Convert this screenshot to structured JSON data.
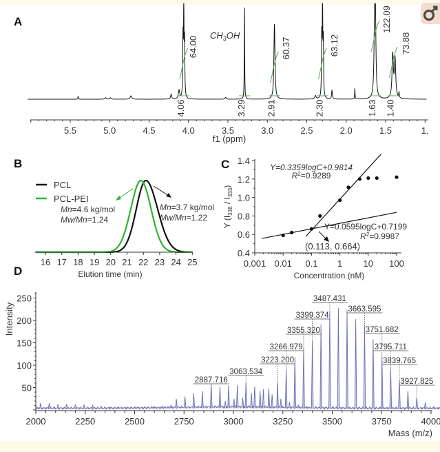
{
  "icon": {
    "name": "key-circle-icon",
    "bg": "#f3dccf",
    "fg": "#4a4a4a"
  },
  "colors": {
    "axis": "#333333",
    "pcl": "#111111",
    "pcl_pei": "#2db52d",
    "integral": "#5aa85a",
    "ms_line": "#6e6eb4",
    "band": "#fffbea"
  },
  "panels": {
    "a": "A",
    "b": "B",
    "c": "C",
    "d": "D"
  },
  "chart_data": [
    {
      "panel": "A",
      "type": "line",
      "xlabel": "f1 (ppm)",
      "xlim": [
        6.04,
        0.98
      ],
      "x_reversed": true,
      "xticks": [
        {
          "v": 5.5,
          "label": "5.5"
        },
        {
          "v": 5.0,
          "label": "5.0"
        },
        {
          "v": 4.5,
          "label": "4.5"
        },
        {
          "v": 4.0,
          "label": "4.0"
        },
        {
          "v": 3.5,
          "label": "3.5"
        },
        {
          "v": 3.0,
          "label": "3.0"
        },
        {
          "v": 2.5,
          "label": "2.5"
        },
        {
          "v": 2.0,
          "label": "2.0"
        },
        {
          "v": 1.5,
          "label": "1.5"
        },
        {
          "v": 1.0,
          "label": "1."
        }
      ],
      "solvent_label": {
        "pre": "CH",
        "sub": "3",
        "post": "OH"
      },
      "peaks": [
        {
          "ppm": 5.4,
          "rel_height": 0.03,
          "width": 0.004
        },
        {
          "ppm": 5.05,
          "rel_height": 0.015,
          "width": 0.01
        },
        {
          "ppm": 4.99,
          "rel_height": 0.015,
          "width": 0.01
        },
        {
          "ppm": 4.73,
          "rel_height": 0.035,
          "width": 0.012
        },
        {
          "ppm": 4.22,
          "rel_height": 0.05,
          "width": 0.008
        },
        {
          "ppm": 4.12,
          "rel_height": 0.09,
          "width": 0.01
        },
        {
          "ppm": 4.07,
          "rel_height": 0.6,
          "width": 0.004
        },
        {
          "ppm": 4.06,
          "rel_height": 0.92,
          "width": 0.004
        },
        {
          "ppm": 4.05,
          "rel_height": 0.55,
          "width": 0.004
        },
        {
          "ppm": 3.53,
          "rel_height": 0.02,
          "width": 0.008
        },
        {
          "ppm": 3.29,
          "rel_height": 0.95,
          "width": 0.003
        },
        {
          "ppm": 2.91,
          "rel_height": 0.78,
          "width": 0.008
        },
        {
          "ppm": 2.39,
          "rel_height": 0.035,
          "width": 0.01
        },
        {
          "ppm": 2.31,
          "rel_height": 0.6,
          "width": 0.004
        },
        {
          "ppm": 2.3,
          "rel_height": 0.96,
          "width": 0.004
        },
        {
          "ppm": 2.29,
          "rel_height": 0.55,
          "width": 0.004
        },
        {
          "ppm": 2.18,
          "rel_height": 0.09,
          "width": 0.006
        },
        {
          "ppm": 1.89,
          "rel_height": 0.11,
          "width": 0.003
        },
        {
          "ppm": 1.64,
          "rel_height": 0.7,
          "width": 0.008
        },
        {
          "ppm": 1.63,
          "rel_height": 0.85,
          "width": 0.008
        },
        {
          "ppm": 1.41,
          "rel_height": 0.45,
          "width": 0.01
        },
        {
          "ppm": 1.38,
          "rel_height": 0.4,
          "width": 0.01
        },
        {
          "ppm": 1.33,
          "rel_height": 0.06,
          "width": 0.004
        }
      ],
      "integrals": [
        {
          "ppm": "4.06",
          "value": "64.00"
        },
        {
          "ppm": "3.29",
          "value": ""
        },
        {
          "ppm": "2.91",
          "value": "60.37"
        },
        {
          "ppm": "2.30",
          "value": "63.12"
        },
        {
          "ppm": "1.63",
          "value": "122.09"
        },
        {
          "ppm": "1.40",
          "value": "73.88"
        }
      ]
    },
    {
      "panel": "B",
      "type": "line",
      "xlabel": "Elution time (min)",
      "xlim": [
        15.4,
        25
      ],
      "xticks": [
        "16",
        "17",
        "18",
        "19",
        "20",
        "21",
        "22",
        "23",
        "24",
        "25"
      ],
      "series": [
        {
          "name": "PCL",
          "peak_elution_time_min": 22.15,
          "color": "#111111",
          "annotation": {
            "mn_label": "Mn",
            "mn_value": "=3.7 kg/mol",
            "pdi_label": "Mw/Mn",
            "pdi_value": "=1.22"
          }
        },
        {
          "name": "PCL-PEI",
          "peak_elution_time_min": 21.85,
          "color": "#2db52d",
          "annotation": {
            "mn_label": "Mn",
            "mn_value": "=4.6 kg/mol",
            "pdi_label": "Mw/Mn",
            "pdi_value": "=1.24"
          }
        }
      ],
      "legend": "top-left"
    },
    {
      "panel": "C",
      "type": "scatter",
      "xlabel": "Concentration (nM)",
      "ylabel": {
        "pre": "Y (I",
        "sub1": "338",
        "mid": " / I",
        "sub2": "333",
        "post": ")"
      },
      "x_scale": "log",
      "xlim": [
        0.001,
        200
      ],
      "ylim": [
        0.4,
        1.4
      ],
      "xticks": [
        {
          "v": 0.001,
          "label": "0.001"
        },
        {
          "v": 0.01,
          "label": "0.01"
        },
        {
          "v": 0.1,
          "label": "0.1"
        },
        {
          "v": 1,
          "label": "1"
        },
        {
          "v": 10,
          "label": "10"
        },
        {
          "v": 100,
          "label": "100"
        }
      ],
      "yticks": [
        "0.4",
        "0.6",
        "0.8",
        "1.0",
        "1.2",
        "1.4"
      ],
      "points": [
        [
          0.01,
          0.59
        ],
        [
          0.02,
          0.62
        ],
        [
          0.1,
          0.66
        ],
        [
          0.2,
          0.8
        ],
        [
          1,
          0.97
        ],
        [
          2,
          1.11
        ],
        [
          5,
          1.2
        ],
        [
          10,
          1.21
        ],
        [
          20,
          1.21
        ],
        [
          100,
          1.22
        ]
      ],
      "fits": [
        {
          "slope": 0.3359,
          "intercept": 0.9814,
          "equation": "Y=0.3359logC+0.9814",
          "r2_label": "R",
          "r2_sup": "2",
          "r2_value": "=0.9289",
          "log_range": [
            -1.2,
            1.45
          ]
        },
        {
          "slope": 0.0595,
          "intercept": 0.7199,
          "equation": "Y=0.0595logC+0.7199",
          "r2_label": "R",
          "r2_sup": "2",
          "r2_value": "=0.9987",
          "log_range": [
            -2.75,
            2.0
          ]
        }
      ],
      "intersection_label": "(0.113, 0.664)"
    },
    {
      "panel": "D",
      "type": "bar",
      "xlabel": "Mass (m/z)",
      "ylabel": "Intensity",
      "xlim": [
        2000,
        4050
      ],
      "ylim": [
        0,
        260
      ],
      "xticks": [
        "2000",
        "2250",
        "2500",
        "2750",
        "3000",
        "3250",
        "3500",
        "3750",
        "4000"
      ],
      "yticks": [
        "50",
        "100",
        "150",
        "200",
        "250"
      ],
      "peaks": [
        [
          2024,
          15
        ],
        [
          2068,
          15
        ],
        [
          2112,
          13
        ],
        [
          2156,
          13
        ],
        [
          2200,
          12
        ],
        [
          2244,
          12
        ],
        [
          2288,
          10
        ],
        [
          2332,
          8
        ],
        [
          2376,
          7
        ],
        [
          2420,
          6
        ],
        [
          2464,
          6
        ],
        [
          2508,
          6
        ],
        [
          2552,
          7
        ],
        [
          2596,
          8
        ],
        [
          2640,
          9
        ],
        [
          2684,
          11
        ],
        [
          2711,
          25
        ],
        [
          2755,
          30
        ],
        [
          2799,
          38
        ],
        [
          2843,
          42
        ],
        [
          2887.716,
          58
        ],
        [
          2931.8,
          52
        ],
        [
          2975.8,
          55
        ],
        [
          3019.8,
          56
        ],
        [
          3063.534,
          62
        ],
        [
          3107.6,
          52
        ],
        [
          3151.6,
          46
        ],
        [
          3195.7,
          35
        ],
        [
          3239.7,
          25
        ],
        [
          3283.7,
          18
        ],
        [
          3327.8,
          12
        ],
        [
          3371.8,
          8
        ],
        [
          2959,
          20
        ],
        [
          3003,
          25
        ],
        [
          3047,
          28
        ],
        [
          3091,
          38
        ],
        [
          3135,
          42
        ],
        [
          3179,
          48
        ],
        [
          3223.2,
          63
        ],
        [
          3266.979,
          92
        ],
        [
          3311,
          118
        ],
        [
          3355.32,
          138
        ],
        [
          3399.374,
          155
        ],
        [
          3443,
          191
        ],
        [
          3487.431,
          220
        ],
        [
          3531,
          228
        ],
        [
          3575,
          223
        ],
        [
          3619,
          203
        ],
        [
          3663.595,
          189
        ],
        [
          3707,
          158
        ],
        [
          3751.682,
          120
        ],
        [
          3795.711,
          92
        ],
        [
          3839.765,
          69
        ],
        [
          3883,
          43
        ],
        [
          3927.825,
          28
        ],
        [
          3971,
          17
        ],
        [
          4015,
          8
        ]
      ],
      "labels": [
        "2887.716",
        "3063.534",
        "3223.200",
        "3266.979",
        "3355.320",
        "3399.374",
        "3487.431",
        "3663.595",
        "3751.682",
        "3795.711",
        "3839.765",
        "3927.825"
      ]
    }
  ]
}
